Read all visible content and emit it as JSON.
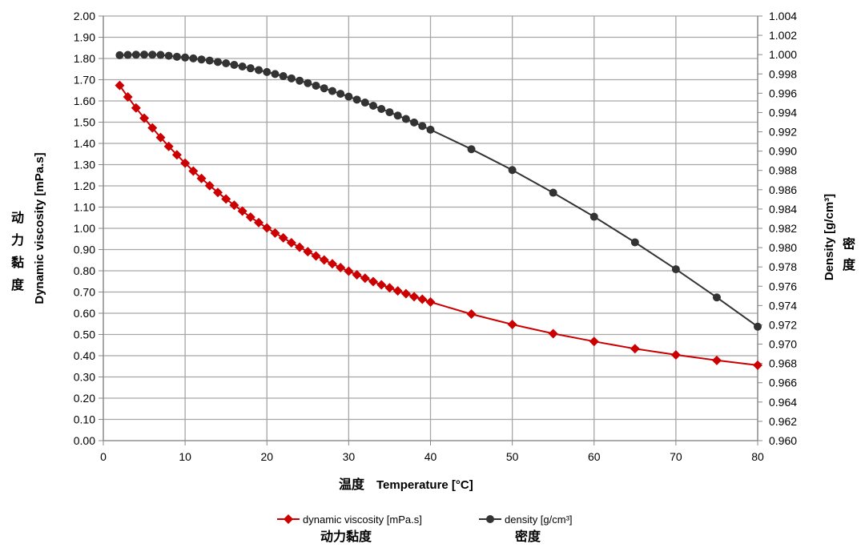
{
  "chart_data": {
    "type": "line",
    "xlabel": "Temperature [°C]",
    "xlabel_cjk": "温度",
    "ylabel_left": "Dynamic viscosity [mPa.s]",
    "ylabel_left_cjk": "动力黏度",
    "ylabel_right": "Density [g/cm³]",
    "ylabel_right_cjk": "密度",
    "xlim": [
      0,
      80
    ],
    "x_ticks": [
      "0",
      "10",
      "20",
      "30",
      "40",
      "50",
      "60",
      "70",
      "80"
    ],
    "ylim_left": [
      0,
      2.0
    ],
    "y_left_ticks": [
      "0.00",
      "0.10",
      "0.20",
      "0.30",
      "0.40",
      "0.50",
      "0.60",
      "0.70",
      "0.80",
      "0.90",
      "1.00",
      "1.10",
      "1.20",
      "1.30",
      "1.40",
      "1.50",
      "1.60",
      "1.70",
      "1.80",
      "1.90",
      "2.00"
    ],
    "ylim_right": [
      0.96,
      1.004
    ],
    "y_right_ticks": [
      "0.960",
      "0.962",
      "0.964",
      "0.966",
      "0.968",
      "0.970",
      "0.972",
      "0.974",
      "0.976",
      "0.978",
      "0.980",
      "0.982",
      "0.984",
      "0.986",
      "0.988",
      "0.990",
      "0.992",
      "0.994",
      "0.996",
      "0.998",
      "1.000",
      "1.002",
      "1.004"
    ],
    "grid": true,
    "legend_position": "bottom",
    "series": [
      {
        "name": "dynamic viscosity [mPa.s]",
        "name_cjk": "动力黏度",
        "axis": "left",
        "color": "#cc0000",
        "marker": "diamond",
        "x": [
          2,
          3,
          4,
          5,
          6,
          7,
          8,
          9,
          10,
          11,
          12,
          13,
          14,
          15,
          16,
          17,
          18,
          19,
          20,
          21,
          22,
          23,
          24,
          25,
          26,
          27,
          28,
          29,
          30,
          31,
          32,
          33,
          34,
          35,
          36,
          37,
          38,
          39,
          40,
          45,
          50,
          55,
          60,
          65,
          70,
          75,
          80
        ],
        "y": [
          1.673,
          1.619,
          1.567,
          1.519,
          1.473,
          1.428,
          1.386,
          1.346,
          1.307,
          1.27,
          1.235,
          1.201,
          1.169,
          1.138,
          1.109,
          1.081,
          1.053,
          1.027,
          1.002,
          0.978,
          0.955,
          0.932,
          0.911,
          0.89,
          0.87,
          0.851,
          0.833,
          0.815,
          0.798,
          0.781,
          0.765,
          0.749,
          0.734,
          0.72,
          0.705,
          0.692,
          0.678,
          0.666,
          0.653,
          0.596,
          0.547,
          0.504,
          0.467,
          0.433,
          0.404,
          0.378,
          0.355
        ]
      },
      {
        "name": "density [g/cm³]",
        "name_cjk": "密度",
        "axis": "right",
        "color": "#333333",
        "marker": "circle",
        "x": [
          2,
          3,
          4,
          5,
          6,
          7,
          8,
          9,
          10,
          11,
          12,
          13,
          14,
          15,
          16,
          17,
          18,
          19,
          20,
          21,
          22,
          23,
          24,
          25,
          26,
          27,
          28,
          29,
          30,
          31,
          32,
          33,
          34,
          35,
          36,
          37,
          38,
          39,
          40,
          45,
          50,
          55,
          60,
          65,
          70,
          75,
          80
        ],
        "y": [
          0.99994,
          0.99997,
          0.99999,
          1.0,
          0.99999,
          0.99997,
          0.99988,
          0.99978,
          0.9997,
          0.99961,
          0.9995,
          0.99938,
          0.99924,
          0.9991,
          0.99894,
          0.99877,
          0.99859,
          0.9984,
          0.9982,
          0.99799,
          0.99777,
          0.99754,
          0.9973,
          0.99705,
          0.99678,
          0.99651,
          0.99623,
          0.99594,
          0.99565,
          0.99534,
          0.99503,
          0.9947,
          0.99437,
          0.99403,
          0.99368,
          0.99333,
          0.99297,
          0.9926,
          0.99222,
          0.9902,
          0.98804,
          0.98569,
          0.9832,
          0.98055,
          0.97776,
          0.97484,
          0.97181
        ]
      }
    ]
  }
}
